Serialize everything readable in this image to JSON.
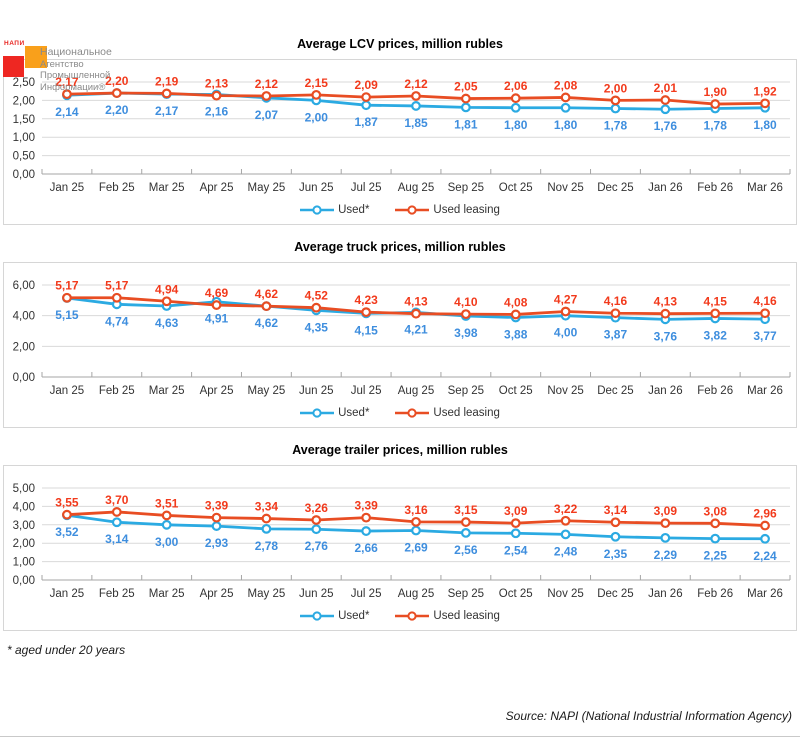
{
  "logo": {
    "acronym": "НАПИ",
    "name_lines": [
      "Национальное",
      "Агентство",
      "Промышленной",
      "Информации®"
    ]
  },
  "legend": {
    "used": "Used*",
    "used_leasing": "Used leasing"
  },
  "colors": {
    "used_line": "#2baae2",
    "used_label": "#3e8ede",
    "leasing_line": "#e84d23",
    "leasing_label": "#f23a1c",
    "grid": "#d9d9d9",
    "axis_line": "#a6a6a6",
    "axis_text": "#333333"
  },
  "footer": {
    "footnote": "* aged under 20 years",
    "source": "Source: NAPI (National Industrial Information Agency)"
  },
  "chart_data": [
    {
      "type": "line",
      "title": "Average LCV prices, million rubles",
      "number_format": "comma-decimal",
      "grid": true,
      "legend_position": "bottom",
      "categories": [
        "Jan 25",
        "Feb 25",
        "Mar 25",
        "Apr 25",
        "May 25",
        "Jun 25",
        "Jul 25",
        "Aug 25",
        "Sep 25",
        "Oct 25",
        "Nov 25",
        "Dec 25",
        "Jan 26",
        "Feb 26",
        "Mar 26"
      ],
      "ylim": [
        0,
        2.5
      ],
      "ytick_step": 0.5,
      "series": [
        {
          "name": "Used*",
          "key": "used",
          "values": [
            2.14,
            2.2,
            2.17,
            2.16,
            2.07,
            2.0,
            1.87,
            1.85,
            1.81,
            1.8,
            1.8,
            1.78,
            1.76,
            1.78,
            1.8
          ]
        },
        {
          "name": "Used leasing",
          "key": "leasing",
          "values": [
            2.17,
            2.2,
            2.19,
            2.13,
            2.12,
            2.15,
            2.09,
            2.12,
            2.05,
            2.06,
            2.08,
            2.0,
            2.01,
            1.9,
            1.92
          ]
        }
      ]
    },
    {
      "type": "line",
      "title": "Average truck prices, million rubles",
      "number_format": "comma-decimal",
      "grid": true,
      "legend_position": "bottom",
      "categories": [
        "Jan 25",
        "Feb 25",
        "Mar 25",
        "Apr 25",
        "May 25",
        "Jun 25",
        "Jul 25",
        "Aug 25",
        "Sep 25",
        "Oct 25",
        "Nov 25",
        "Dec 25",
        "Jan 26",
        "Feb 26",
        "Mar 26"
      ],
      "ylim": [
        0,
        6
      ],
      "ytick_step": 2,
      "series": [
        {
          "name": "Used*",
          "key": "used",
          "values": [
            5.15,
            4.74,
            4.63,
            4.91,
            4.62,
            4.35,
            4.15,
            4.21,
            3.98,
            3.88,
            4.0,
            3.87,
            3.76,
            3.82,
            3.77
          ]
        },
        {
          "name": "Used leasing",
          "key": "leasing",
          "values": [
            5.17,
            5.17,
            4.94,
            4.69,
            4.62,
            4.52,
            4.23,
            4.13,
            4.1,
            4.08,
            4.27,
            4.16,
            4.13,
            4.15,
            4.16
          ]
        }
      ]
    },
    {
      "type": "line",
      "title": "Average trailer prices, million rubles",
      "number_format": "comma-decimal",
      "grid": true,
      "legend_position": "bottom",
      "categories": [
        "Jan 25",
        "Feb 25",
        "Mar 25",
        "Apr 25",
        "May 25",
        "Jun 25",
        "Jul 25",
        "Aug 25",
        "Sep 25",
        "Oct 25",
        "Nov 25",
        "Dec 25",
        "Jan 26",
        "Feb 26",
        "Mar 26"
      ],
      "ylim": [
        0,
        5
      ],
      "ytick_step": 1,
      "series": [
        {
          "name": "Used*",
          "key": "used",
          "values": [
            3.52,
            3.14,
            3.0,
            2.93,
            2.78,
            2.76,
            2.66,
            2.69,
            2.56,
            2.54,
            2.48,
            2.35,
            2.29,
            2.25,
            2.24
          ]
        },
        {
          "name": "Used leasing",
          "key": "leasing",
          "values": [
            3.55,
            3.7,
            3.51,
            3.39,
            3.34,
            3.26,
            3.39,
            3.16,
            3.15,
            3.09,
            3.22,
            3.14,
            3.09,
            3.08,
            2.96
          ]
        }
      ]
    }
  ]
}
